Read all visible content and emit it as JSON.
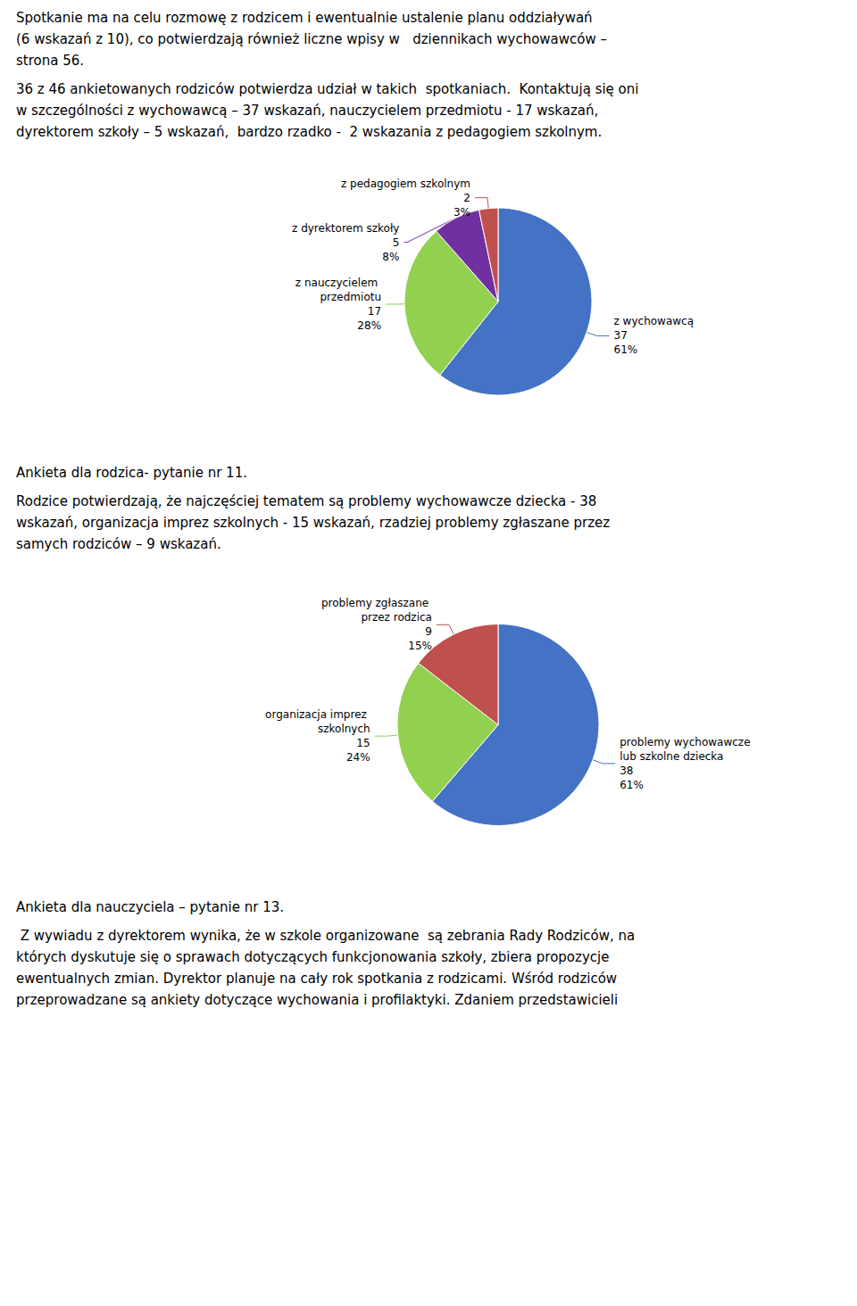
{
  "chart_data": [
    {
      "type": "pie",
      "annotations": [
        "Spotkanie ma na celu rozmowę z rodzicem i ewentualnie ustalenie planu oddziaływań\n(6 wskazań z 10), co potwierdzają również liczne wpisy w   dziennikach wychowawców –\nstrona 56.",
        "36 z 46 ankietowanych rodziców potwierdza udział w takich  spotkaniach.  Kontaktują się oni\nw szczególności z wychowawcą – 37 wskazań, nauczycielem przedmiotu - 17 wskazań,\ndyrektorem szkoły – 5 wskazań,  bardzo rzadko -  2 wskazania z pedagogiem szkolnym."
      ],
      "categories": [
        "z wychowawcą",
        "z nauczycielem przedmiotu",
        "z dyrektorem szkoły",
        "z pedagogiem szkolnym"
      ],
      "values": [
        37,
        17,
        5,
        2
      ],
      "share_labels": [
        "61%",
        "28%",
        "8%",
        "3%"
      ],
      "colors": [
        "#4472C4",
        "#92D050",
        "#7030A0",
        "#C0504D"
      ],
      "data_labels": true
    },
    {
      "type": "pie",
      "annotations": [
        "Ankieta dla rodzica- pytanie nr 11.",
        "Rodzice potwierdzają, że najczęściej tematem są problemy wychowawcze dziecka - 38\nwskazań, organizacja imprez szkolnych - 15 wskazań, rzadziej problemy zgłaszane przez\nsamych rodziców – 9 wskazań."
      ],
      "categories": [
        "problemy wychowawcze lub szkolne dziecka",
        "organizacja imprez szkolnych",
        "problemy zgłaszane przez rodzica"
      ],
      "values": [
        38,
        15,
        9
      ],
      "share_labels": [
        "61%",
        "24%",
        "15%"
      ],
      "colors": [
        "#4472C4",
        "#92D050",
        "#C0504D"
      ],
      "data_labels": true,
      "annotations_below": [
        "Ankieta dla nauczyciela – pytanie nr 13.",
        " Z wywiadu z dyrektorem wynika, że w szkole organizowane  są zebrania Rady Rodziców, na\nktórych dyskutuje się o sprawach dotyczących funkcjonowania szkoły, zbiera propozycje\newentualnych zmian. Dyrektor planuje na cały rok spotkania z rodzicami. Wśród rodziców\nprzeprowadzane są ankiety dotyczące wychowania i profilaktyki. Zdaniem przedstawicieli"
      ]
    }
  ]
}
